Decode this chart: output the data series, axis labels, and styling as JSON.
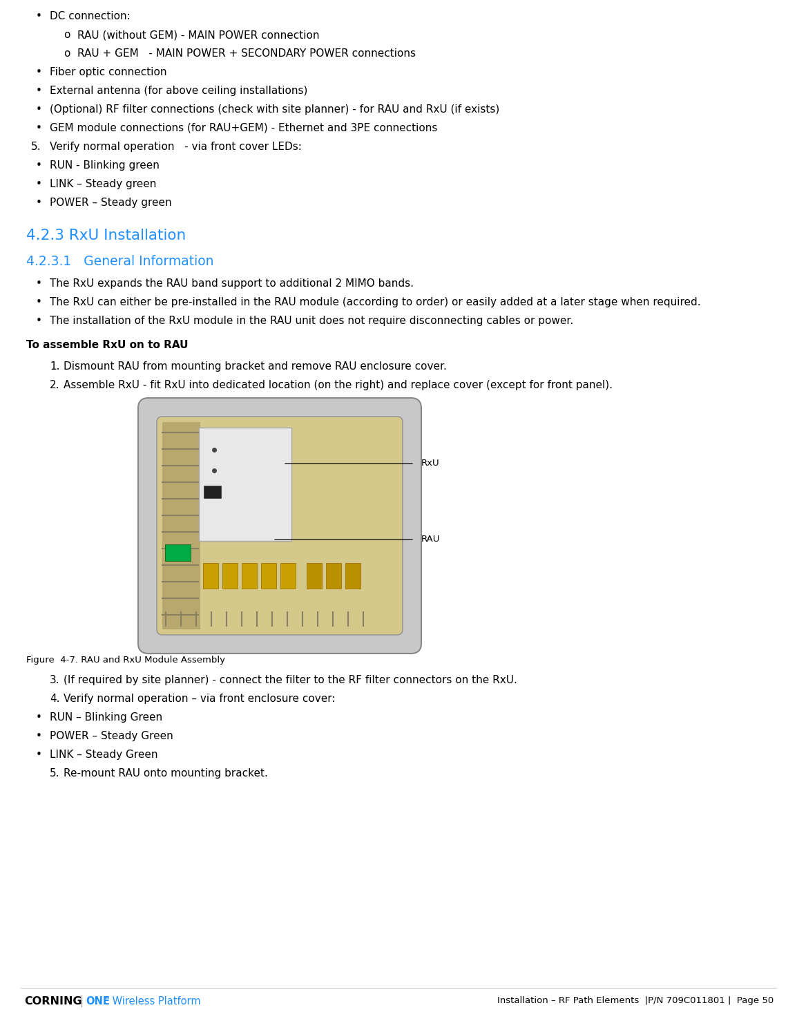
{
  "bg_color": "#ffffff",
  "text_color": "#000000",
  "blue_color": "#1e8fff",
  "font_size_body": 11.0,
  "font_size_heading1": 15.5,
  "font_size_heading2": 13.5,
  "font_size_caption": 9.5,
  "bullet_char": "•",
  "sub_bullet_char": "o",
  "section_423_title": "4.2.3 RxU Installation",
  "section_4231_title": "4.2.3.1   General Information",
  "bold_heading": "To assemble RxU on to RAU",
  "lines": [
    {
      "type": "bullet",
      "level": 0,
      "text": "DC connection:"
    },
    {
      "type": "sub",
      "level": 1,
      "text": "RAU (without GEM) - MAIN POWER connection"
    },
    {
      "type": "sub",
      "level": 1,
      "text": "RAU + GEM   - MAIN POWER + SECONDARY POWER connections"
    },
    {
      "type": "bullet",
      "level": 0,
      "text": "Fiber optic connection"
    },
    {
      "type": "bullet",
      "level": 0,
      "text": "External antenna (for above ceiling installations)"
    },
    {
      "type": "bullet",
      "level": 0,
      "text": "(Optional) RF filter connections (check with site planner) - for RAU and RxU (if exists)"
    },
    {
      "type": "bullet",
      "level": 0,
      "text": "GEM module connections (for RAU+GEM) - Ethernet and 3PE connections"
    },
    {
      "type": "numbered",
      "level": 0,
      "number": "5.",
      "text": "Verify normal operation   - via front cover LEDs:"
    },
    {
      "type": "bullet",
      "level": 0,
      "text": "RUN - Blinking green"
    },
    {
      "type": "bullet",
      "level": 0,
      "text": "LINK – Steady green"
    },
    {
      "type": "bullet",
      "level": 0,
      "text": "POWER – Steady green"
    }
  ],
  "general_info_bullets": [
    "The RxU expands the RAU band support to additional 2 MIMO bands.",
    "The RxU can either be pre-installed in the RAU module (according to order) or easily added at a later stage when required.",
    "The installation of the RxU module in the RAU unit does not require disconnecting cables or power."
  ],
  "assemble_steps": [
    {
      "number": "1.",
      "text": "Dismount RAU from mounting bracket and remove RAU enclosure cover."
    },
    {
      "number": "2.",
      "text": "Assemble RxU - fit RxU into dedicated location (on the right) and replace cover (except for front panel)."
    }
  ],
  "figure_caption": "Figure  4-7. RAU and RxU Module Assembly",
  "after_figure_steps": [
    {
      "number": "3.",
      "text": "(If required by site planner) - connect the filter to the RF filter connectors on the RxU."
    },
    {
      "number": "4.",
      "text": "Verify normal operation – via front enclosure cover:"
    }
  ],
  "after_fig_bullets": [
    "RUN – Blinking Green",
    "POWER – Steady Green",
    "LINK – Steady Green"
  ],
  "final_step": {
    "number": "5.",
    "text": "Re-mount RAU onto mounting bracket."
  },
  "footer_right": "Installation – RF Path Elements  |P/N 709C011801 |  Page 50"
}
